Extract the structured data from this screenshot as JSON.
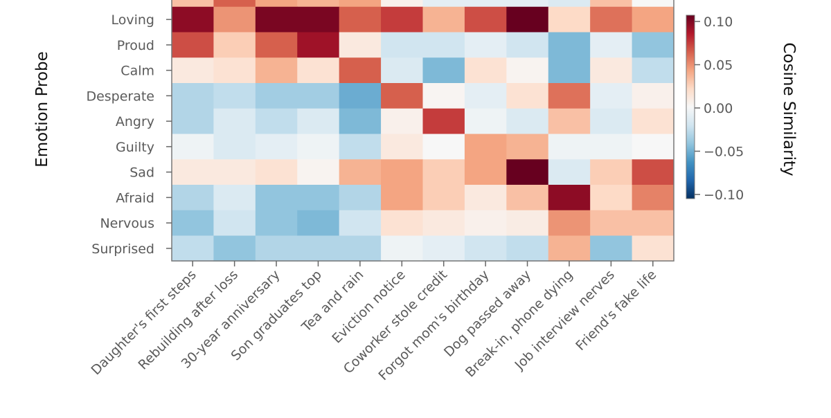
{
  "chart_data": {
    "type": "heatmap",
    "title": "",
    "ylabel": "Emotion Probe",
    "xlabel": "",
    "colorbar_label": "Cosine Similarity",
    "colormap": "RdBu_r",
    "vmin": -0.1,
    "vmax": 0.1,
    "colorbar_ticks": [
      "0.10",
      "0.05",
      "0.00",
      "−0.05",
      "−0.10"
    ],
    "colorbar_tick_values": [
      0.1,
      0.05,
      0.0,
      -0.05,
      -0.1
    ],
    "x_categories": [
      "Daughter's first steps",
      "Rebuilding after loss",
      "30-year anniversary",
      "Son graduates top",
      "Tea and rain",
      "Eviction notice",
      "Coworker stole credit",
      "Forgot mom's birthday",
      "Dog passed away",
      "Break-in, phone dying",
      "Job interview nerves",
      "Friend's fake life"
    ],
    "y_categories": [
      "",
      "Loving",
      "Proud",
      "Calm",
      "Desperate",
      "Angry",
      "Guilty",
      "Sad",
      "Afraid",
      "Nervous",
      "Surprised"
    ],
    "values": [
      [
        0.03,
        0.06,
        0.04,
        0.035,
        0.04,
        0.005,
        -0.01,
        -0.01,
        -0.01,
        -0.015,
        0.03,
        0.0
      ],
      [
        0.09,
        0.045,
        0.095,
        0.095,
        0.06,
        0.07,
        0.035,
        0.065,
        0.105,
        0.02,
        0.055,
        0.04
      ],
      [
        0.065,
        0.025,
        0.06,
        0.085,
        0.01,
        -0.02,
        -0.02,
        -0.01,
        -0.02,
        -0.045,
        -0.01,
        -0.04
      ],
      [
        0.01,
        0.015,
        0.035,
        0.015,
        0.06,
        -0.015,
        -0.045,
        0.015,
        0.003,
        -0.045,
        0.01,
        -0.025
      ],
      [
        -0.03,
        -0.025,
        -0.035,
        -0.035,
        -0.05,
        0.06,
        0.002,
        -0.01,
        0.015,
        0.055,
        -0.01,
        0.005
      ],
      [
        -0.03,
        -0.015,
        -0.025,
        -0.015,
        -0.045,
        0.005,
        0.07,
        -0.005,
        -0.015,
        0.03,
        -0.015,
        0.015
      ],
      [
        -0.005,
        -0.015,
        -0.01,
        -0.005,
        -0.025,
        0.01,
        0.0,
        0.04,
        0.035,
        -0.005,
        -0.005,
        0.0
      ],
      [
        0.01,
        0.01,
        0.015,
        0.003,
        0.035,
        0.04,
        0.025,
        0.04,
        0.11,
        -0.015,
        0.025,
        0.065
      ],
      [
        -0.03,
        -0.015,
        -0.04,
        -0.04,
        -0.03,
        0.04,
        0.025,
        0.01,
        0.03,
        0.09,
        0.02,
        0.05
      ],
      [
        -0.04,
        -0.02,
        -0.04,
        -0.045,
        -0.02,
        0.015,
        0.01,
        0.005,
        0.008,
        0.045,
        0.03,
        0.03
      ],
      [
        -0.025,
        -0.04,
        -0.03,
        -0.03,
        -0.03,
        -0.005,
        -0.01,
        -0.02,
        -0.025,
        0.035,
        -0.04,
        0.015
      ]
    ]
  }
}
